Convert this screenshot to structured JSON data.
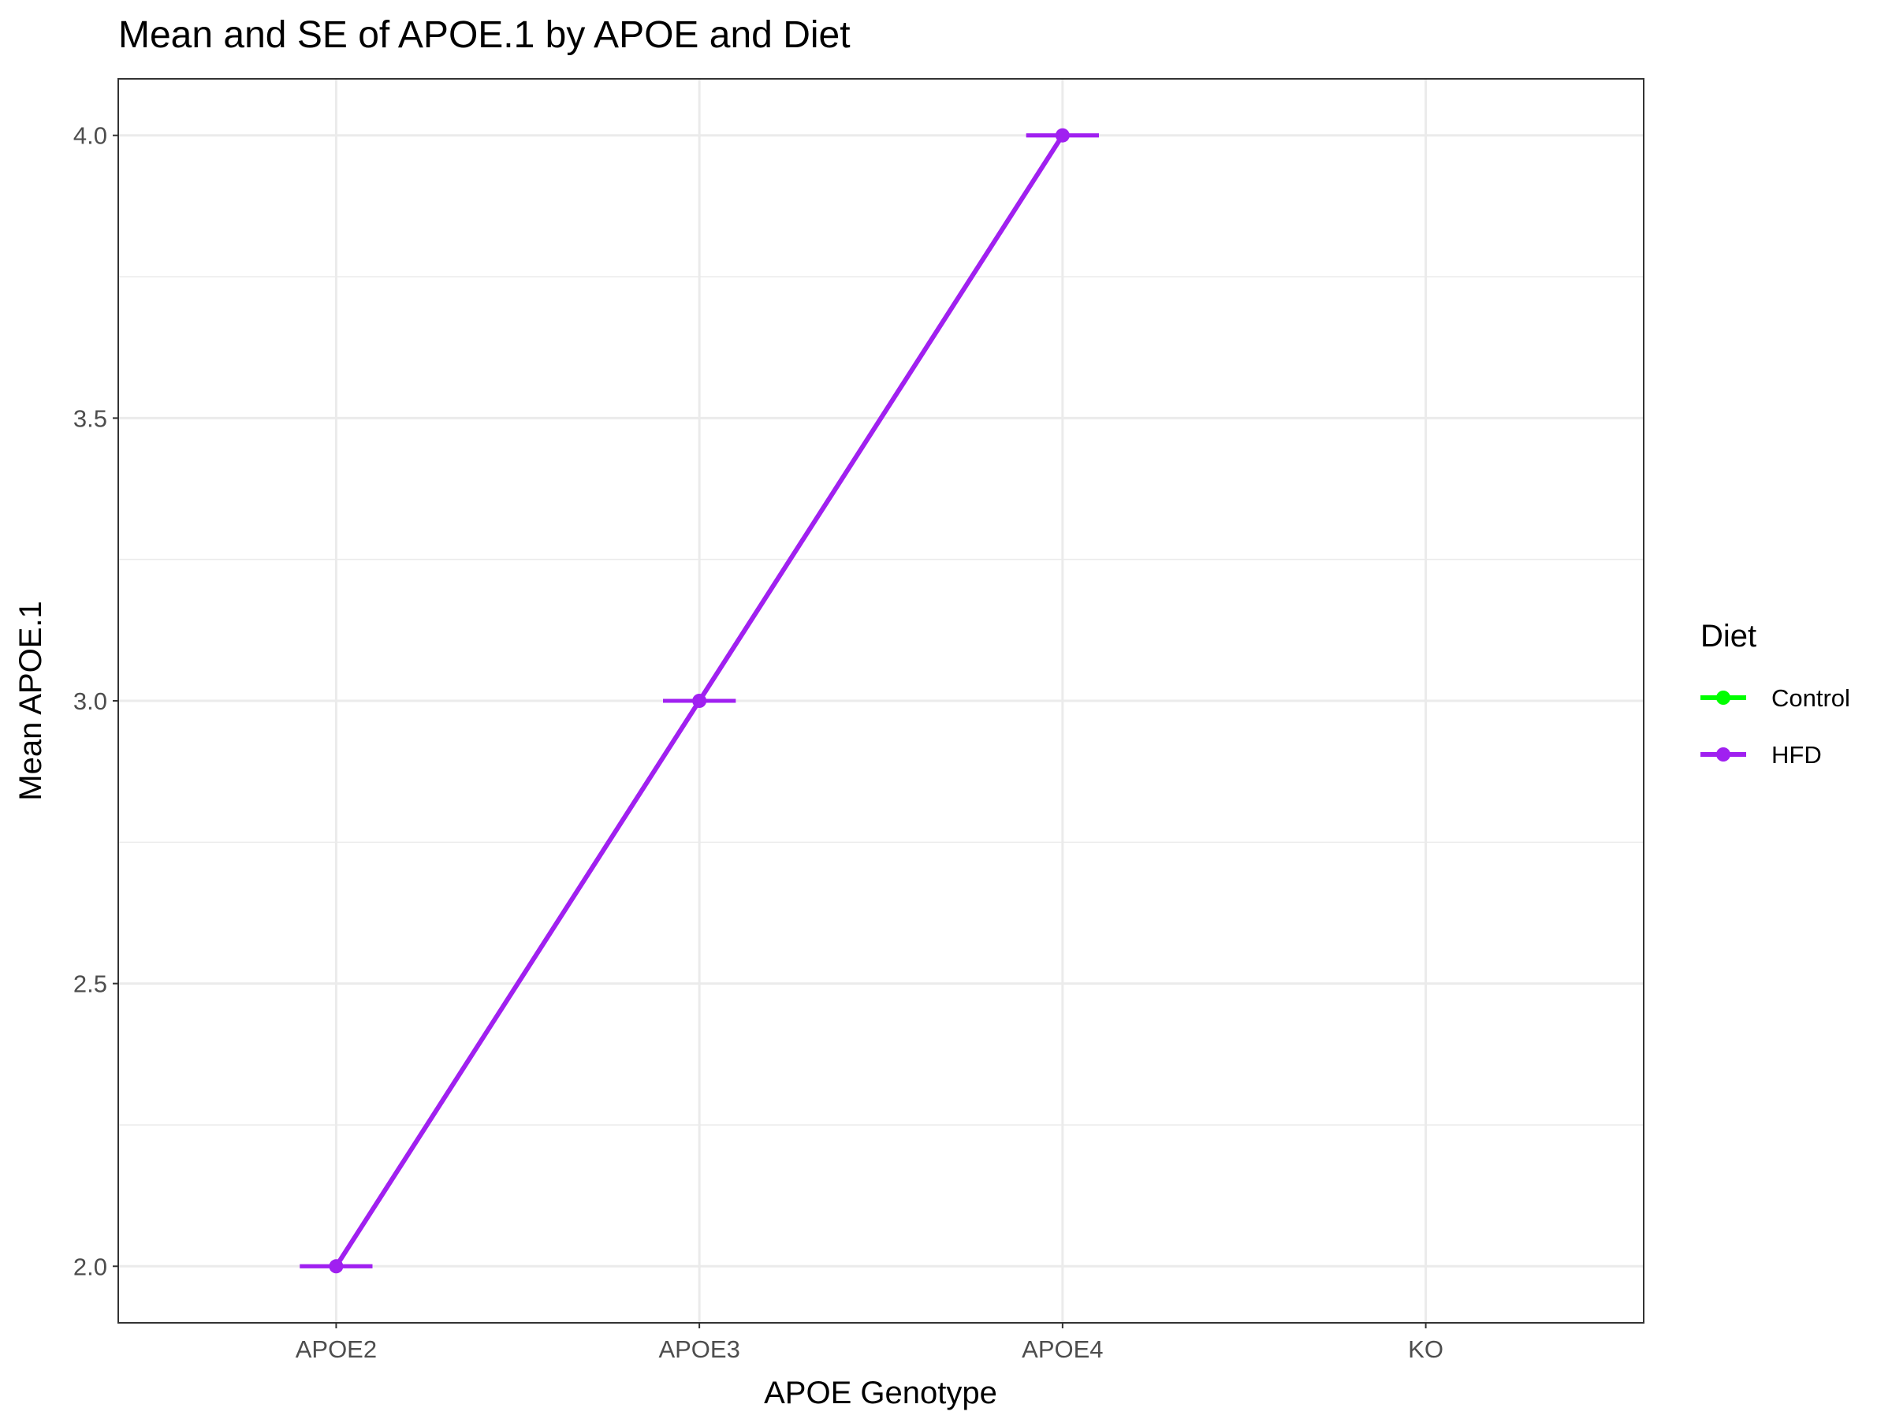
{
  "chart_data": {
    "type": "line",
    "title": "Mean and SE of APOE.1 by APOE and Diet",
    "xlabel": "APOE Genotype",
    "ylabel": "Mean APOE.1",
    "categories": [
      "APOE2",
      "APOE3",
      "APOE4",
      "KO"
    ],
    "ylim": [
      1.9,
      4.1
    ],
    "yticks": [
      "2.0",
      "2.5",
      "3.0",
      "3.5",
      "4.0"
    ],
    "grid": true,
    "legend": {
      "title": "Diet",
      "position": "right"
    },
    "series": [
      {
        "name": "Control",
        "color": "#00ff00",
        "values": [
          null,
          null,
          null,
          null
        ],
        "se": [
          null,
          null,
          null,
          null
        ]
      },
      {
        "name": "HFD",
        "color": "#a020f0",
        "values": [
          2.0,
          3.0,
          4.0,
          null
        ],
        "se": [
          0,
          0,
          0,
          null
        ]
      }
    ]
  }
}
